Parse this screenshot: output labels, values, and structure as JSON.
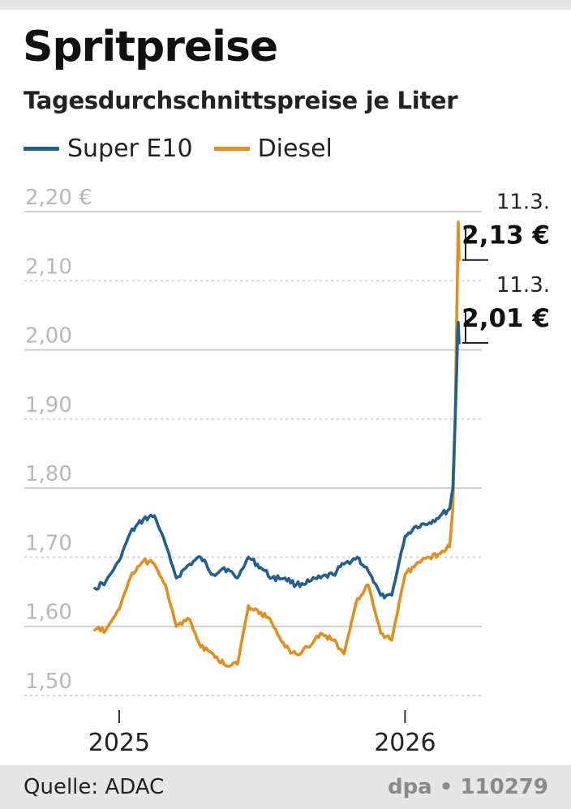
{
  "header": {
    "title": "Spritpreise",
    "subtitle": "Tagesdurchschnittspreise je Liter"
  },
  "legend": [
    {
      "label": "Super E10",
      "color": "#215f8c"
    },
    {
      "label": "Diesel",
      "color": "#e0901e"
    }
  ],
  "footer": {
    "source": "Quelle: ADAC",
    "credit": "dpa • 110279"
  },
  "chart_data": {
    "type": "line",
    "title": "Spritpreise",
    "subtitle": "Tagesdurchschnittspreise je Liter",
    "xlabel": "",
    "ylabel": "",
    "x_ticks": [
      "2025",
      "2026"
    ],
    "y_ticks": [
      "2,20 €",
      "2,10",
      "2,00",
      "1,90",
      "1,80",
      "1,70",
      "1,60",
      "1,50"
    ],
    "ylim": [
      1.5,
      2.2
    ],
    "grid": true,
    "legend_position": "top-left",
    "x": [
      "2024-12-01",
      "2024-12-15",
      "2025-01-01",
      "2025-01-15",
      "2025-02-01",
      "2025-02-15",
      "2025-03-01",
      "2025-03-15",
      "2025-04-01",
      "2025-04-15",
      "2025-05-01",
      "2025-05-15",
      "2025-06-01",
      "2025-06-15",
      "2025-07-01",
      "2025-07-15",
      "2025-08-01",
      "2025-08-15",
      "2025-09-01",
      "2025-09-15",
      "2025-10-01",
      "2025-10-15",
      "2025-11-01",
      "2025-11-15",
      "2025-12-01",
      "2025-12-15",
      "2026-01-01",
      "2026-01-15",
      "2026-02-01",
      "2026-02-15",
      "2026-02-27",
      "2026-03-03",
      "2026-03-06",
      "2026-03-08",
      "2026-03-09",
      "2026-03-10",
      "2026-03-11"
    ],
    "series": [
      {
        "name": "Super E10",
        "color": "#215f8c",
        "values": [
          1.655,
          1.665,
          1.695,
          1.735,
          1.755,
          1.76,
          1.72,
          1.67,
          1.69,
          1.7,
          1.675,
          1.685,
          1.67,
          1.7,
          1.685,
          1.67,
          1.67,
          1.66,
          1.665,
          1.67,
          1.675,
          1.69,
          1.7,
          1.68,
          1.645,
          1.645,
          1.73,
          1.745,
          1.75,
          1.76,
          1.77,
          1.8,
          1.9,
          1.97,
          2.02,
          2.04,
          2.01
        ]
      },
      {
        "name": "Diesel",
        "color": "#e0901e",
        "values": [
          1.595,
          1.595,
          1.625,
          1.67,
          1.695,
          1.69,
          1.66,
          1.6,
          1.61,
          1.57,
          1.56,
          1.545,
          1.545,
          1.63,
          1.62,
          1.605,
          1.57,
          1.56,
          1.57,
          1.59,
          1.58,
          1.56,
          1.64,
          1.66,
          1.59,
          1.58,
          1.675,
          1.69,
          1.7,
          1.705,
          1.715,
          1.77,
          1.9,
          2.05,
          2.12,
          2.185,
          2.13
        ]
      }
    ],
    "annotations": [
      {
        "series": "Diesel",
        "date": "11.3.",
        "value": "2,13 €"
      },
      {
        "series": "Super E10",
        "date": "11.3.",
        "value": "2,01 €"
      }
    ]
  }
}
